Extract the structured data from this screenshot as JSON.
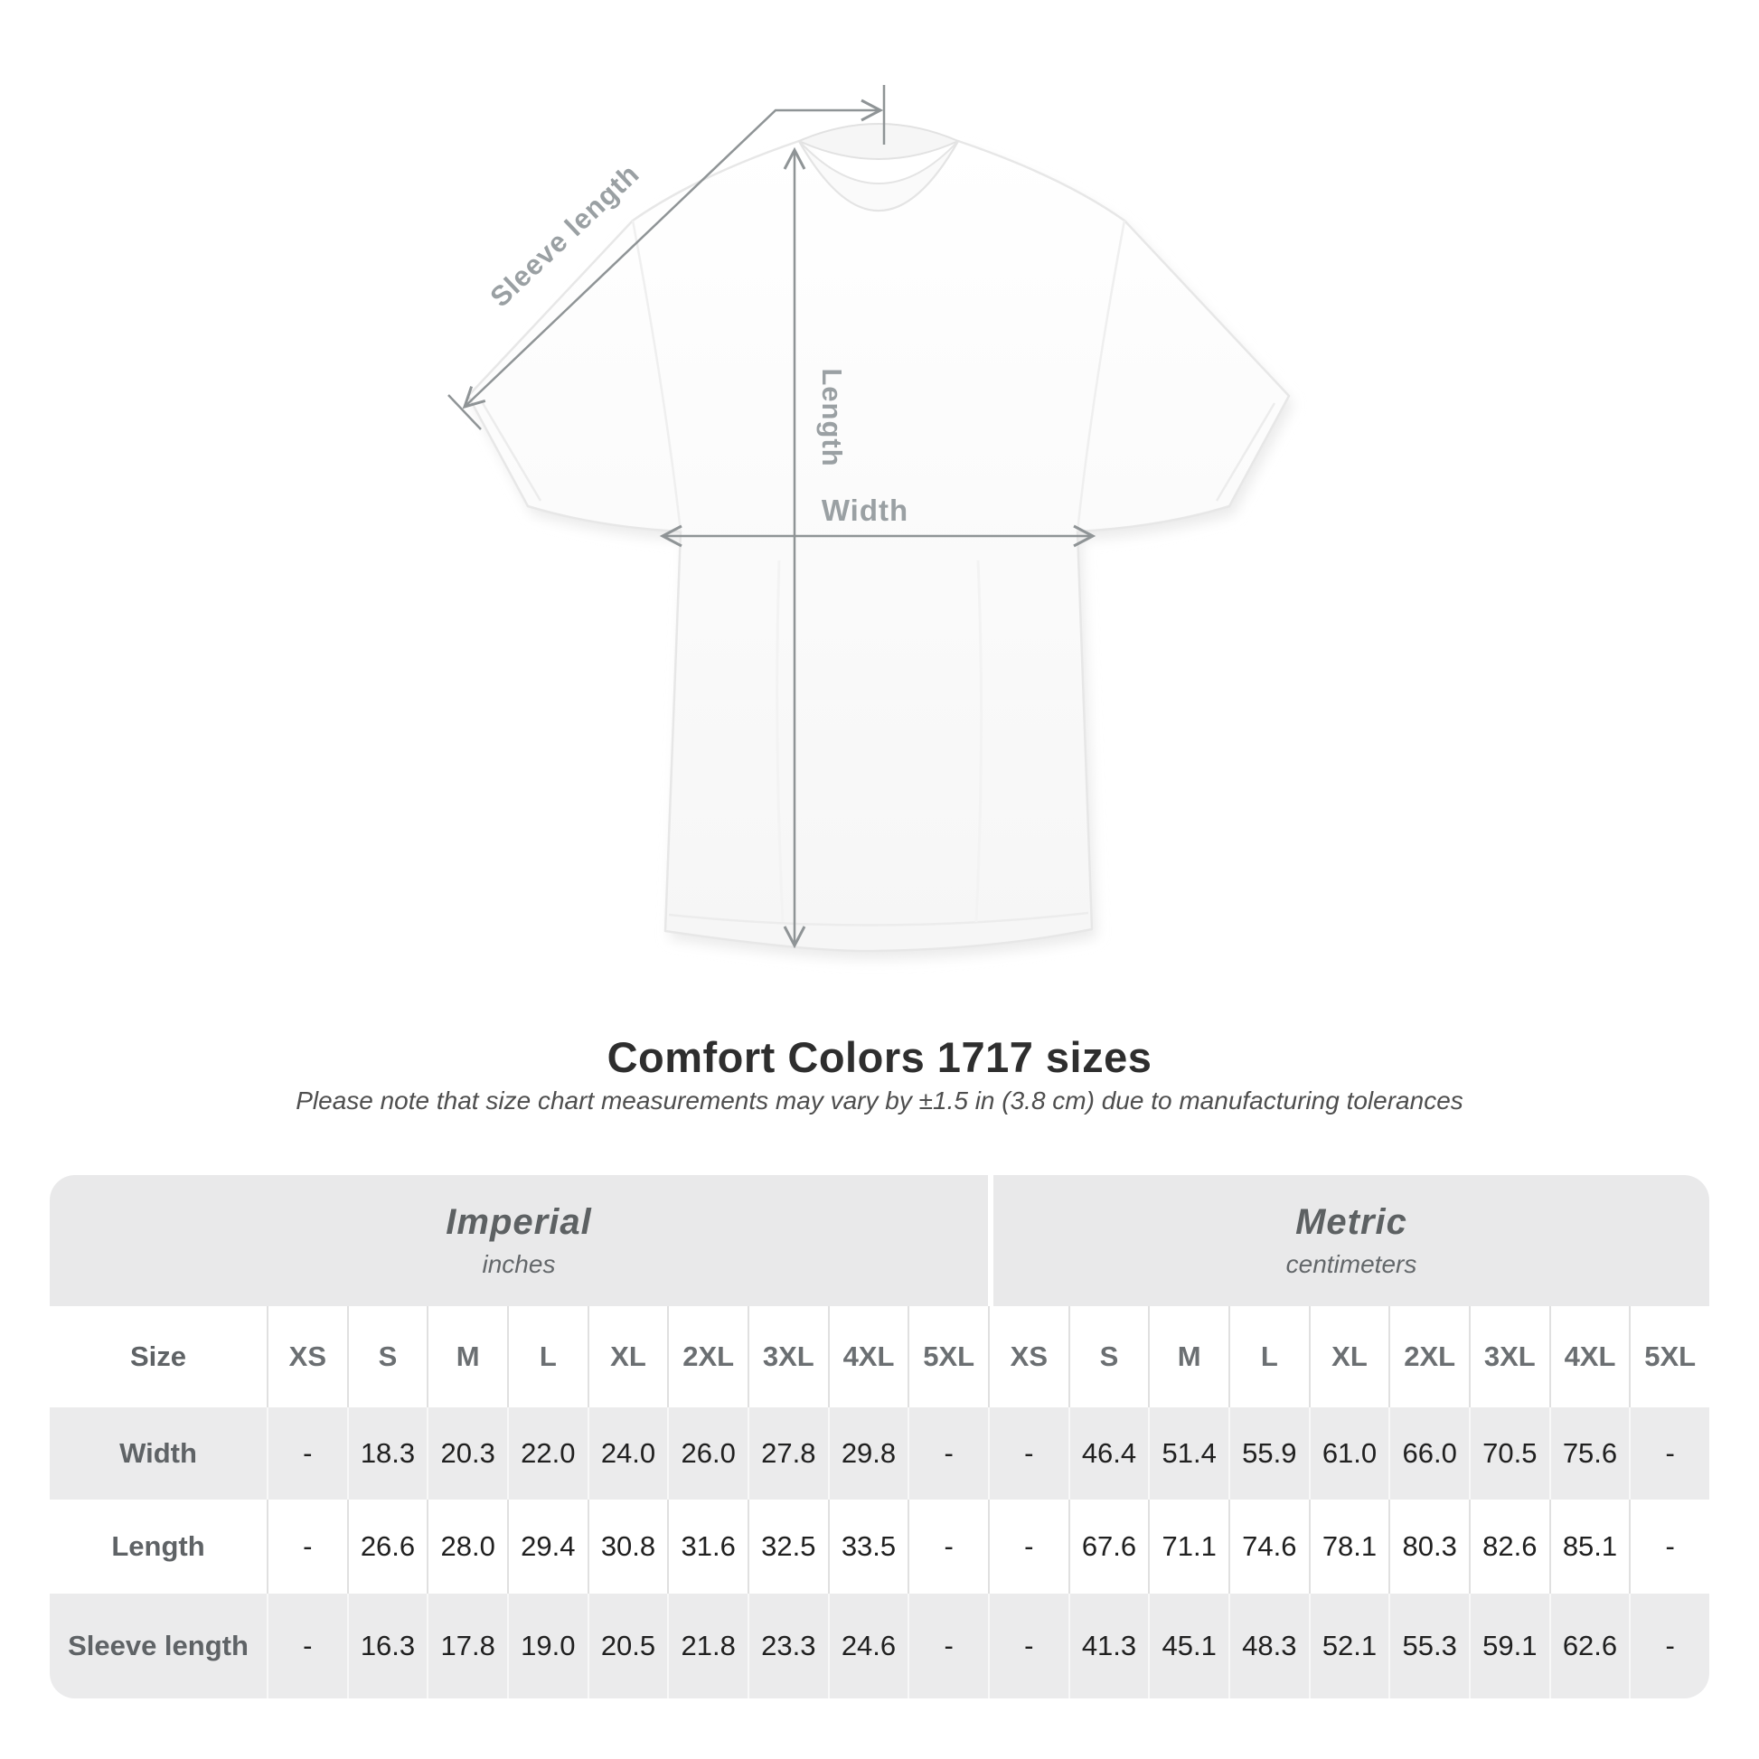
{
  "diagram": {
    "sleeve_label": "Sleeve length",
    "length_label": "Length",
    "width_label": "Width",
    "line_color": "#8f9496",
    "label_color": "#9aa0a3"
  },
  "heading": {
    "title": "Comfort Colors 1717 sizes",
    "subtitle": "Please note that size chart measurements may vary by ±1.5 in (3.8 cm) due to manufacturing tolerances"
  },
  "table": {
    "size_header": "Size",
    "groups": [
      {
        "label": "Imperial",
        "sublabel": "inches"
      },
      {
        "label": "Metric",
        "sublabel": "centimeters"
      }
    ],
    "sizes": [
      "XS",
      "S",
      "M",
      "L",
      "XL",
      "2XL",
      "3XL",
      "4XL",
      "5XL"
    ],
    "rows": [
      {
        "label": "Width",
        "imperial": [
          "-",
          "18.3",
          "20.3",
          "22.0",
          "24.0",
          "26.0",
          "27.8",
          "29.8",
          "-"
        ],
        "metric": [
          "-",
          "46.4",
          "51.4",
          "55.9",
          "61.0",
          "66.0",
          "70.5",
          "75.6",
          "-"
        ]
      },
      {
        "label": "Length",
        "imperial": [
          "-",
          "26.6",
          "28.0",
          "29.4",
          "30.8",
          "31.6",
          "32.5",
          "33.5",
          "-"
        ],
        "metric": [
          "-",
          "67.6",
          "71.1",
          "74.6",
          "78.1",
          "80.3",
          "82.6",
          "85.1",
          "-"
        ]
      },
      {
        "label": "Sleeve length",
        "imperial": [
          "-",
          "16.3",
          "17.8",
          "19.0",
          "20.5",
          "21.8",
          "23.3",
          "24.6",
          "-"
        ],
        "metric": [
          "-",
          "41.3",
          "45.1",
          "48.3",
          "52.1",
          "55.3",
          "59.1",
          "62.6",
          "-"
        ]
      }
    ]
  },
  "chart_data": {
    "type": "table",
    "title": "Comfort Colors 1717 sizes",
    "note": "Please note that size chart measurements may vary by ±1.5 in (3.8 cm) due to manufacturing tolerances",
    "categories": [
      "XS",
      "S",
      "M",
      "L",
      "XL",
      "2XL",
      "3XL",
      "4XL",
      "5XL"
    ],
    "series": [
      {
        "name": "Width (inches)",
        "values": [
          null,
          18.3,
          20.3,
          22.0,
          24.0,
          26.0,
          27.8,
          29.8,
          null
        ]
      },
      {
        "name": "Length (inches)",
        "values": [
          null,
          26.6,
          28.0,
          29.4,
          30.8,
          31.6,
          32.5,
          33.5,
          null
        ]
      },
      {
        "name": "Sleeve length (inches)",
        "values": [
          null,
          16.3,
          17.8,
          19.0,
          20.5,
          21.8,
          23.3,
          24.6,
          null
        ]
      },
      {
        "name": "Width (centimeters)",
        "values": [
          null,
          46.4,
          51.4,
          55.9,
          61.0,
          66.0,
          70.5,
          75.6,
          null
        ]
      },
      {
        "name": "Length (centimeters)",
        "values": [
          null,
          67.6,
          71.1,
          74.6,
          78.1,
          80.3,
          82.6,
          85.1,
          null
        ]
      },
      {
        "name": "Sleeve length (centimeters)",
        "values": [
          null,
          41.3,
          45.1,
          48.3,
          52.1,
          55.3,
          59.1,
          62.6,
          null
        ]
      }
    ]
  },
  "colors": {
    "band_bg": "#e9e9ea",
    "row_gray": "#ebebec",
    "divider": "#e0e0e0",
    "title_text": "#2e2e2e",
    "header_text": "#5d6163",
    "value_text": "#202020",
    "measure_line": "#8f9496"
  }
}
